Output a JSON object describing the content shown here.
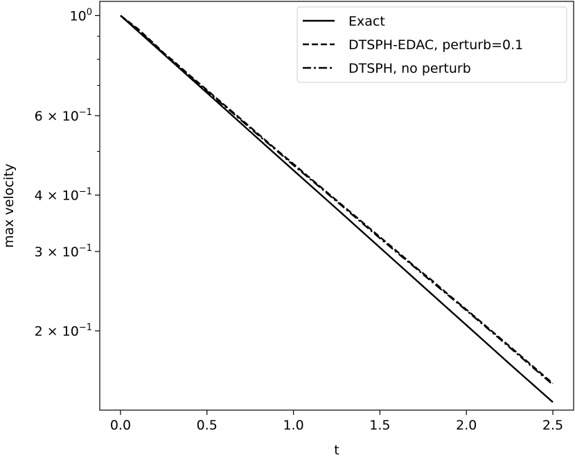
{
  "chart_data": {
    "type": "line",
    "title": "",
    "xlabel": "t",
    "ylabel": "max velocity",
    "xlim": [
      -0.12,
      2.62
    ],
    "ylim": [
      0.1335,
      1.075
    ],
    "yscale": "log",
    "x_ticks": [
      {
        "value": 0.0,
        "label": "0.0"
      },
      {
        "value": 0.5,
        "label": "0.5"
      },
      {
        "value": 1.0,
        "label": "1.0"
      },
      {
        "value": 1.5,
        "label": "1.5"
      },
      {
        "value": 2.0,
        "label": "2.0"
      },
      {
        "value": 2.5,
        "label": "2.5"
      }
    ],
    "y_ticks": [
      {
        "value": 1.0,
        "base": "10",
        "exp": "0"
      },
      {
        "value": 0.6,
        "base": "6 × 10",
        "exp": "−1"
      },
      {
        "value": 0.4,
        "base": "4 × 10",
        "exp": "−1"
      },
      {
        "value": 0.3,
        "base": "3 × 10",
        "exp": "−1"
      },
      {
        "value": 0.2,
        "base": "2 × 10",
        "exp": "−1"
      }
    ],
    "y_minor_ticks": [
      0.5,
      0.7,
      0.8,
      0.9
    ],
    "grid": false,
    "legend_position": "top-right",
    "series": [
      {
        "name": "Exact",
        "style": "solid",
        "x": [
          0.0,
          0.25,
          0.5,
          0.75,
          1.0,
          1.25,
          1.5,
          1.75,
          2.0,
          2.25,
          2.5
        ],
        "y": [
          1.0,
          0.821,
          0.674,
          0.553,
          0.454,
          0.373,
          0.306,
          0.251,
          0.206,
          0.169,
          0.139
        ]
      },
      {
        "name": "DTSPH-EDAC, perturb=0.1",
        "style": "dashed",
        "x": [
          0.0,
          0.1,
          0.2,
          0.25,
          0.3,
          0.4,
          0.5,
          0.6,
          0.7,
          0.8,
          0.9,
          1.0,
          1.1,
          1.2,
          1.3,
          1.4,
          1.5,
          1.6,
          1.7,
          1.8,
          1.9,
          2.0,
          2.1,
          2.2,
          2.3,
          2.4,
          2.5
        ],
        "y": [
          1.0,
          0.935,
          0.862,
          0.826,
          0.797,
          0.737,
          0.684,
          0.634,
          0.588,
          0.545,
          0.505,
          0.469,
          0.435,
          0.404,
          0.375,
          0.348,
          0.323,
          0.3,
          0.278,
          0.259,
          0.24,
          0.223,
          0.207,
          0.192,
          0.178,
          0.165,
          0.153
        ]
      },
      {
        "name": "DTSPH, no perturb",
        "style": "dashdot",
        "x": [
          0.0,
          0.1,
          0.2,
          0.25,
          0.3,
          0.4,
          0.5,
          0.6,
          0.7,
          0.8,
          0.9,
          1.0,
          1.1,
          1.2,
          1.3,
          1.4,
          1.5,
          1.6,
          1.7,
          1.8,
          1.9,
          2.0,
          2.1,
          2.2,
          2.3,
          2.4,
          2.5
        ],
        "y": [
          1.0,
          0.93,
          0.858,
          0.823,
          0.792,
          0.733,
          0.68,
          0.631,
          0.585,
          0.542,
          0.503,
          0.466,
          0.433,
          0.402,
          0.373,
          0.346,
          0.321,
          0.298,
          0.277,
          0.257,
          0.239,
          0.222,
          0.206,
          0.191,
          0.177,
          0.164,
          0.152
        ]
      }
    ]
  }
}
